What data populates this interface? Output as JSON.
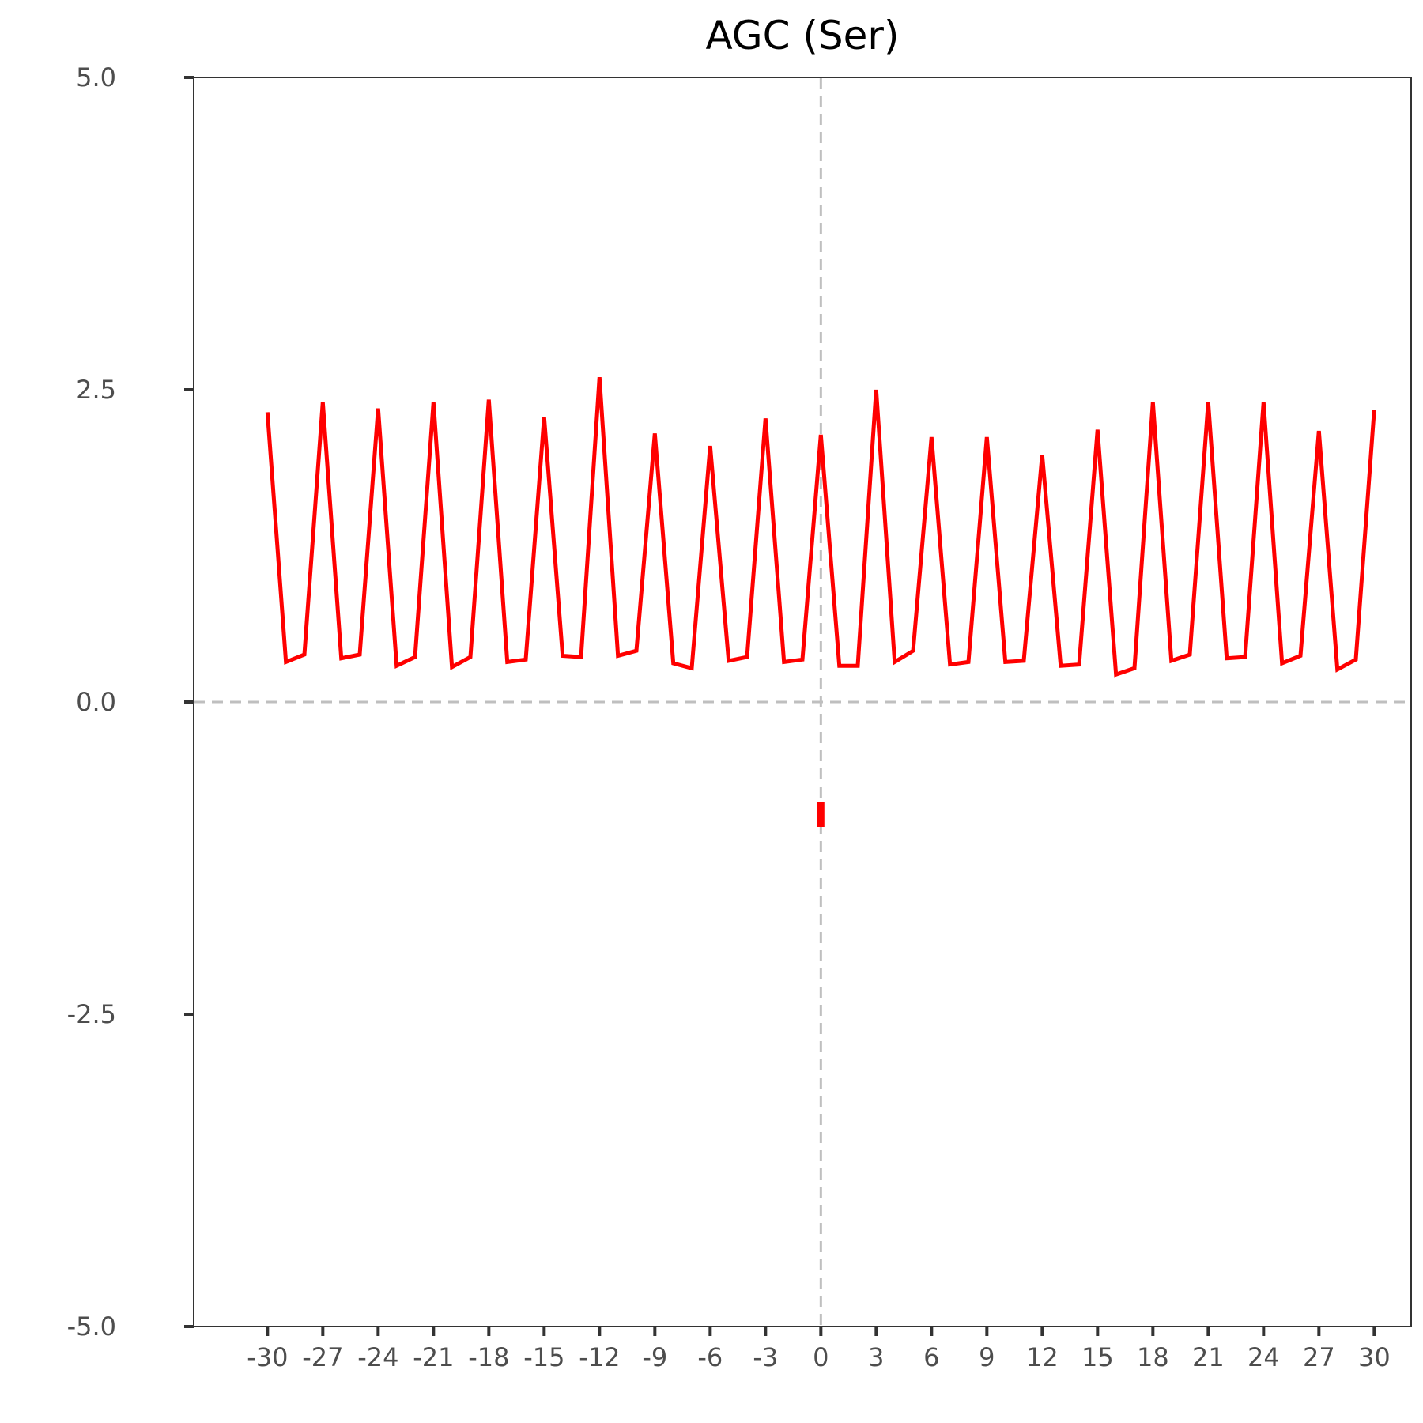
{
  "chart_data": {
    "type": "line",
    "title": "AGC (Ser)",
    "xlabel": "",
    "ylabel": "",
    "xlim": [
      -34,
      32
    ],
    "ylim": [
      -5.0,
      5.0
    ],
    "x_ticks": [
      "-30",
      "-27",
      "-24",
      "-21",
      "-18",
      "-15",
      "-12",
      "-9",
      "-6",
      "-3",
      "0",
      "3",
      "6",
      "9",
      "12",
      "15",
      "18",
      "21",
      "24",
      "27",
      "30"
    ],
    "y_ticks": [
      "5.0",
      "2.5",
      "0.0",
      "-2.5",
      "-5.0"
    ],
    "grid": false,
    "reference_lines": {
      "x": 0,
      "y": 0,
      "style": "dashed",
      "color": "#bfbfbf"
    },
    "series": [
      {
        "color": "#ff0000",
        "x": [
          -30,
          -29,
          -28,
          -27,
          -26,
          -25,
          -24,
          -23,
          -22,
          -21,
          -20,
          -19,
          -18,
          -17,
          -16,
          -15,
          -14,
          -13,
          -12,
          -11,
          -10,
          -9,
          -8,
          -7,
          -6,
          -5,
          -4,
          -3,
          -2,
          -1,
          0,
          1,
          2,
          3,
          4,
          5,
          6,
          7,
          8,
          9,
          10,
          11,
          12,
          13,
          14,
          15,
          16,
          17,
          18,
          19,
          20,
          21,
          22,
          23,
          24,
          25,
          26,
          27,
          28,
          29,
          30
        ],
        "y": [
          2.32,
          0.32,
          0.38,
          2.4,
          0.35,
          0.38,
          2.35,
          0.29,
          0.36,
          2.4,
          0.28,
          0.36,
          2.42,
          0.32,
          0.34,
          2.28,
          0.37,
          0.36,
          2.6,
          0.37,
          0.41,
          2.15,
          0.31,
          0.27,
          2.05,
          0.33,
          0.36,
          2.27,
          0.32,
          0.34,
          2.14,
          0.29,
          0.29,
          2.5,
          0.32,
          0.41,
          2.12,
          0.3,
          0.32,
          2.12,
          0.32,
          0.33,
          1.98,
          0.29,
          0.3,
          2.18,
          0.22,
          0.27,
          2.4,
          0.33,
          0.38,
          2.4,
          0.35,
          0.36,
          2.4,
          0.31,
          0.37,
          2.17,
          0.26,
          0.34,
          2.34
        ]
      },
      {
        "color": "#ff0000",
        "x": [
          0,
          0
        ],
        "y": [
          -0.8,
          -1.0
        ]
      }
    ]
  }
}
